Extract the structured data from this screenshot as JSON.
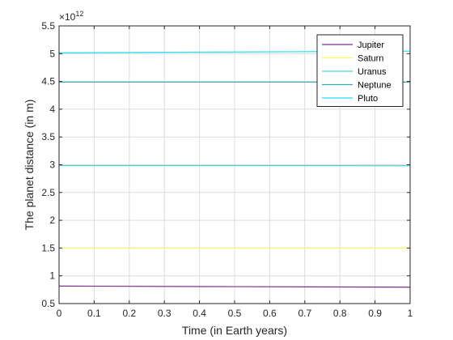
{
  "chart_data": {
    "type": "line",
    "title": "",
    "xlabel": "Time (in Earth years)",
    "ylabel": "The planet distance (in m)",
    "xlim": [
      0,
      1
    ],
    "ylim": [
      0.5,
      5.5
    ],
    "y_exponent_text": "×10",
    "y_exponent_power": "12",
    "x_ticks": [
      "0",
      "0.1",
      "0.2",
      "0.3",
      "0.4",
      "0.5",
      "0.6",
      "0.7",
      "0.8",
      "0.9",
      "1"
    ],
    "y_ticks": [
      "0.5",
      "1",
      "1.5",
      "2",
      "2.5",
      "3",
      "3.5",
      "4",
      "4.5",
      "5",
      "5.5"
    ],
    "grid": true,
    "legend_position": "top-right",
    "series": [
      {
        "name": "Jupiter",
        "color": "#7e2f8e",
        "x": [
          0,
          0.5,
          1
        ],
        "y": [
          0.815,
          0.805,
          0.795
        ]
      },
      {
        "name": "Saturn",
        "color": "#ffff4d",
        "x": [
          0,
          0.5,
          1
        ],
        "y": [
          1.503,
          1.503,
          1.503
        ]
      },
      {
        "name": "Uranus",
        "color": "#4dd4d9",
        "x": [
          0,
          0.5,
          1
        ],
        "y": [
          2.985,
          2.985,
          2.982
        ]
      },
      {
        "name": "Neptune",
        "color": "#3aa8b2",
        "x": [
          0,
          0.5,
          1
        ],
        "y": [
          4.488,
          4.488,
          4.488
        ]
      },
      {
        "name": "Pluto",
        "color": "#1fe0f0",
        "x": [
          0,
          0.5,
          1
        ],
        "y": [
          5.015,
          5.03,
          5.045
        ]
      }
    ]
  }
}
